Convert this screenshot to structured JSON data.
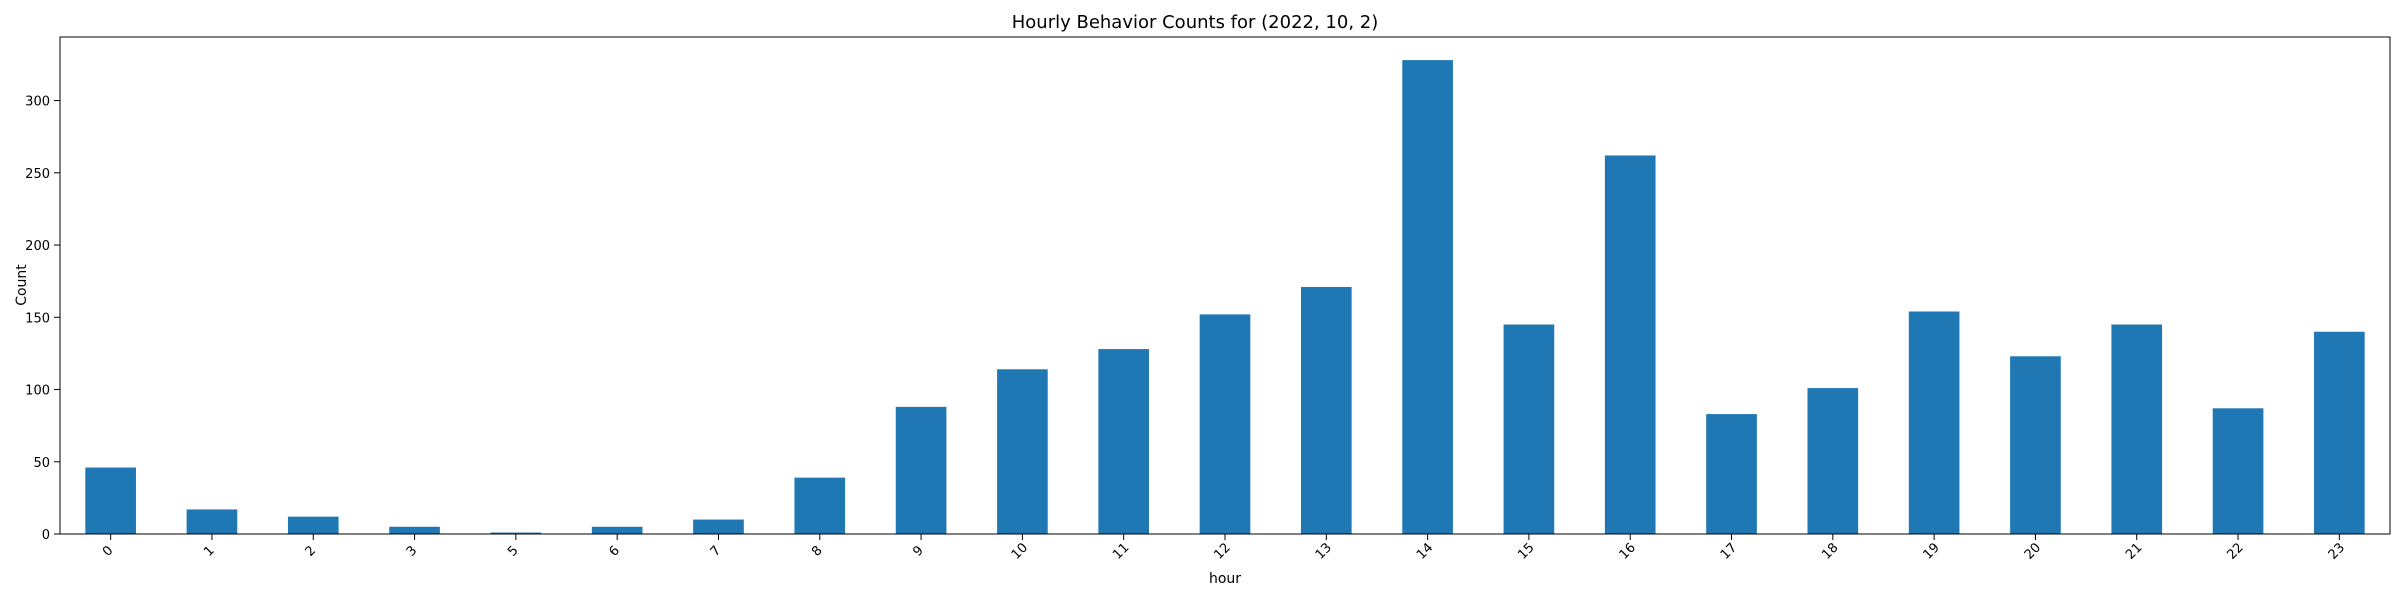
{
  "chart_data": {
    "type": "bar",
    "title": "Hourly Behavior Counts for (2022, 10, 2)",
    "xlabel": "hour",
    "ylabel": "Count",
    "categories": [
      "0",
      "1",
      "2",
      "3",
      "5",
      "6",
      "7",
      "8",
      "9",
      "10",
      "11",
      "12",
      "13",
      "14",
      "15",
      "16",
      "17",
      "18",
      "19",
      "20",
      "21",
      "22",
      "23"
    ],
    "values": [
      46,
      17,
      12,
      5,
      1,
      5,
      10,
      39,
      88,
      114,
      128,
      152,
      171,
      328,
      145,
      262,
      83,
      101,
      154,
      123,
      145,
      87,
      140
    ],
    "ylim": [
      0,
      344
    ],
    "yticks": [
      0,
      50,
      100,
      150,
      200,
      250,
      300
    ],
    "bar_color": "#1f77b4",
    "grid": false,
    "legend": "none"
  }
}
